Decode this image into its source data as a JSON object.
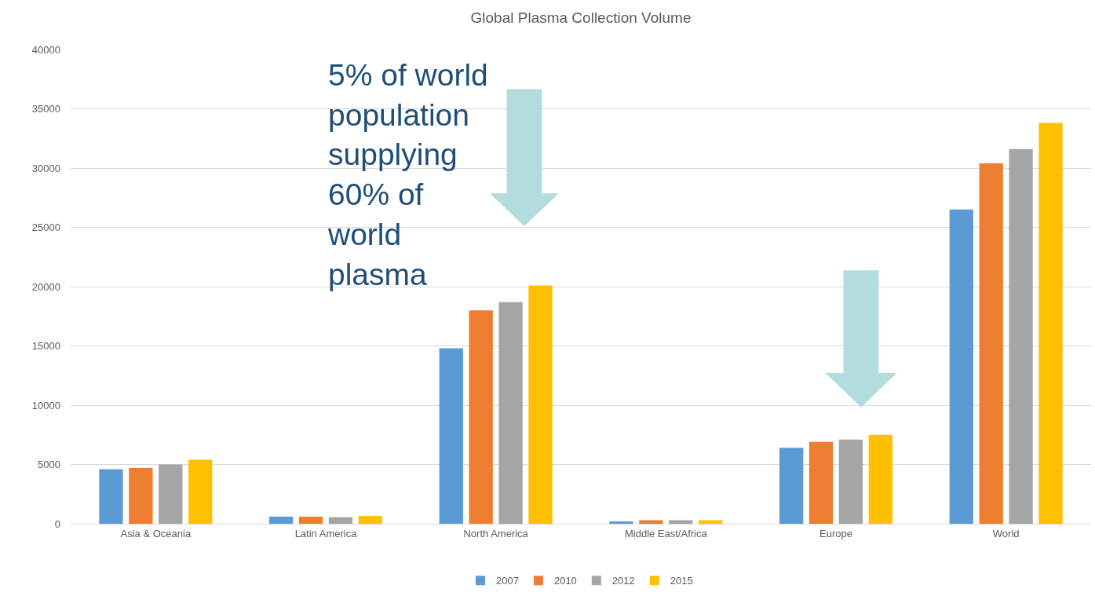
{
  "chart_data": {
    "type": "bar",
    "title": "Global Plasma Collection Volume",
    "categories": [
      "Asia & Oceania",
      "Latin America",
      "North America",
      "Middle East/Africa",
      "Europe",
      "World"
    ],
    "series": [
      {
        "name": "2007",
        "color": "#5b9bd5",
        "values": [
          4600,
          600,
          14800,
          200,
          6400,
          26500
        ]
      },
      {
        "name": "2010",
        "color": "#ed7d31",
        "values": [
          4700,
          600,
          18000,
          300,
          6900,
          30400
        ]
      },
      {
        "name": "2012",
        "color": "#a5a5a5",
        "values": [
          5000,
          550,
          18700,
          300,
          7100,
          31600
        ]
      },
      {
        "name": "2015",
        "color": "#ffc000",
        "values": [
          5400,
          650,
          20100,
          300,
          7500,
          33800
        ]
      }
    ],
    "ylim": [
      0,
      40000
    ],
    "yticks": [
      0,
      5000,
      10000,
      15000,
      20000,
      25000,
      30000,
      35000,
      40000
    ],
    "grid": "y",
    "legend": "bottom",
    "annotations": [
      "5% of world\npopulation\nsupplying\n60% of\nworld\nplasma"
    ]
  }
}
